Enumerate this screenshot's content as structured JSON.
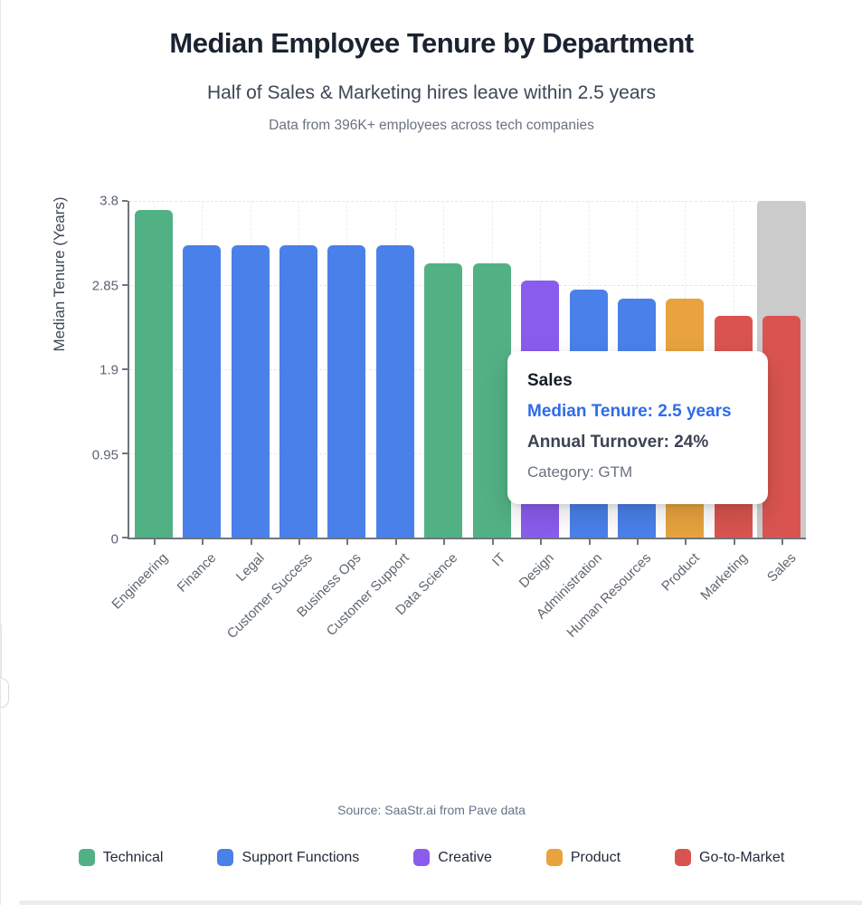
{
  "header": {
    "title": "Median Employee Tenure by Department",
    "subtitle": "Half of Sales & Marketing hires leave within 2.5 years",
    "note": "Data from 396K+ employees across tech companies"
  },
  "chart_data": {
    "type": "bar",
    "title": "Median Employee Tenure by Department",
    "xlabel": "",
    "ylabel": "Median Tenure (Years)",
    "ylim": [
      0,
      3.8
    ],
    "yticks": [
      "0",
      "0.95",
      "1.9",
      "2.85",
      "3.8"
    ],
    "grid": true,
    "legend_position": "bottom",
    "categories": [
      "Engineering",
      "Finance",
      "Legal",
      "Customer Success",
      "Business Ops",
      "Customer Support",
      "Data Science",
      "IT",
      "Design",
      "Administration",
      "Human Resources",
      "Product",
      "Marketing",
      "Sales"
    ],
    "values": [
      3.7,
      3.3,
      3.3,
      3.3,
      3.3,
      3.3,
      3.1,
      3.1,
      2.9,
      2.8,
      2.7,
      2.7,
      2.5,
      2.5
    ],
    "groups": [
      "Technical",
      "Support Functions",
      "Support Functions",
      "Support Functions",
      "Support Functions",
      "Support Functions",
      "Technical",
      "Technical",
      "Creative",
      "Support Functions",
      "Support Functions",
      "Product",
      "Go-to-Market",
      "Go-to-Market"
    ],
    "group_colors": {
      "Technical": "#52b184",
      "Support Functions": "#4a80e9",
      "Creative": "#8a5ced",
      "Product": "#e8a33e",
      "Go-to-Market": "#d95450"
    },
    "highlighted_category": "Sales",
    "highlight_band_color": "#cbcbcb"
  },
  "tooltip": {
    "title": "Sales",
    "median_tenure": "Median Tenure: 2.5 years",
    "annual_turnover": "Annual Turnover: 24%",
    "category": "Category: GTM",
    "accent_color": "#2f6bea"
  },
  "footer": {
    "source": "Source: SaaStr.ai from Pave data",
    "legend": [
      {
        "label": "Technical",
        "color": "#52b184"
      },
      {
        "label": "Support Functions",
        "color": "#4a80e9"
      },
      {
        "label": "Creative",
        "color": "#8a5ced"
      },
      {
        "label": "Product",
        "color": "#e8a33e"
      },
      {
        "label": "Go-to-Market",
        "color": "#d95450"
      }
    ]
  }
}
